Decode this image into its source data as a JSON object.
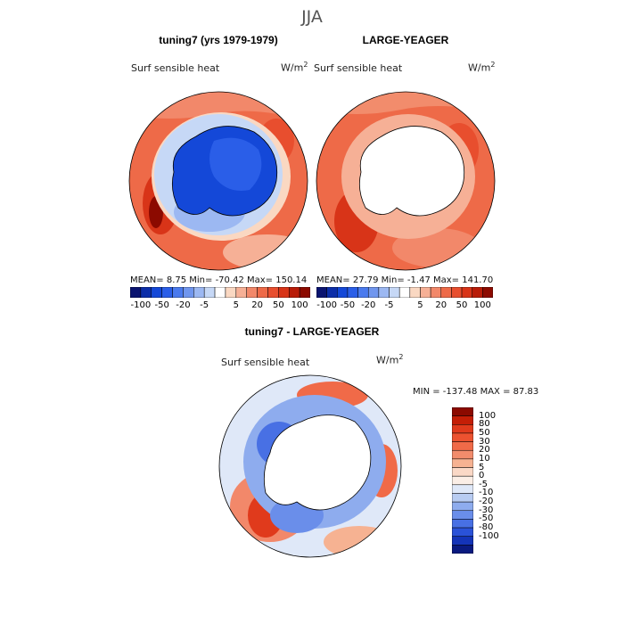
{
  "season": "JJA",
  "panels": [
    {
      "title": "tuning7 (yrs 1979-1979)",
      "variable": "Surf sensible heat",
      "units": "W/m",
      "units_exp": "2",
      "stats": {
        "mean": "8.75",
        "min": "-70.42",
        "max": "150.14"
      },
      "stats_text": "MEAN=   8.75  Min= -70.42   Max= 150.14"
    },
    {
      "title": "LARGE-YEAGER",
      "variable": "Surf sensible heat",
      "units": "W/m",
      "units_exp": "2",
      "stats": {
        "mean": "27.79",
        "min": "-1.47",
        "max": "141.70"
      },
      "stats_text": "MEAN=  27.79  Min=  -1.47  Max= 141.70"
    }
  ],
  "diff_panel": {
    "title": "tuning7 - LARGE-YEAGER",
    "variable": "Surf sensible heat",
    "units": "W/m",
    "units_exp": "2",
    "minmax_text": "MIN = -137.48  MAX =  87.83"
  },
  "colorbar_top": {
    "labels": [
      "-100",
      "-50",
      "-20",
      "-5",
      "5",
      "20",
      "50",
      "100"
    ],
    "colors": [
      "#0a1470",
      "#0c2ea8",
      "#1448d8",
      "#2a5ee8",
      "#4a7aee",
      "#7096ee",
      "#9cb8f2",
      "#c6d8f6",
      "#ffffff",
      "#fad8c2",
      "#f6b096",
      "#f2886a",
      "#ee6a48",
      "#e84e2e",
      "#d83418",
      "#b81c08",
      "#8c0a00"
    ]
  },
  "colorbar_diff": {
    "labels": [
      "100",
      "80",
      "50",
      "30",
      "20",
      "10",
      "5",
      "0",
      "-5",
      "-10",
      "-20",
      "-30",
      "-50",
      "-80",
      "-100"
    ],
    "colors": [
      "#8c0a00",
      "#c41e06",
      "#e03a1c",
      "#ec5230",
      "#f06a48",
      "#f28c6c",
      "#f6b292",
      "#fad8c6",
      "#fbeee6",
      "#dfe8f8",
      "#b8ccf2",
      "#8eacee",
      "#6a8eea",
      "#4870e4",
      "#2a52d8",
      "#1434b8",
      "#0a1a80"
    ]
  }
}
